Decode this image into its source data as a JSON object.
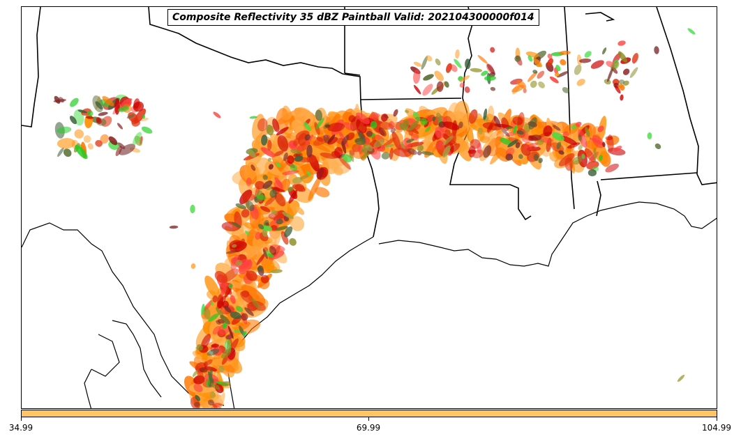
{
  "title": "Composite Reflectivity 35 dBZ Paintball Valid: 202104300000f014",
  "colorbar": {
    "color": "#FFC464",
    "ticks": [
      "34.99",
      "69.99",
      "104.99"
    ]
  },
  "palette": [
    "#FF8C00",
    "#FF7700",
    "#E03010",
    "#CC0000",
    "#FF4040",
    "#22CC22",
    "#44DD44",
    "#556B2F",
    "#8B8B22",
    "#A0A040",
    "#8B1A1A",
    "#7A3030",
    "#FFA030",
    "#FFB050",
    "#3A5F3A"
  ]
}
